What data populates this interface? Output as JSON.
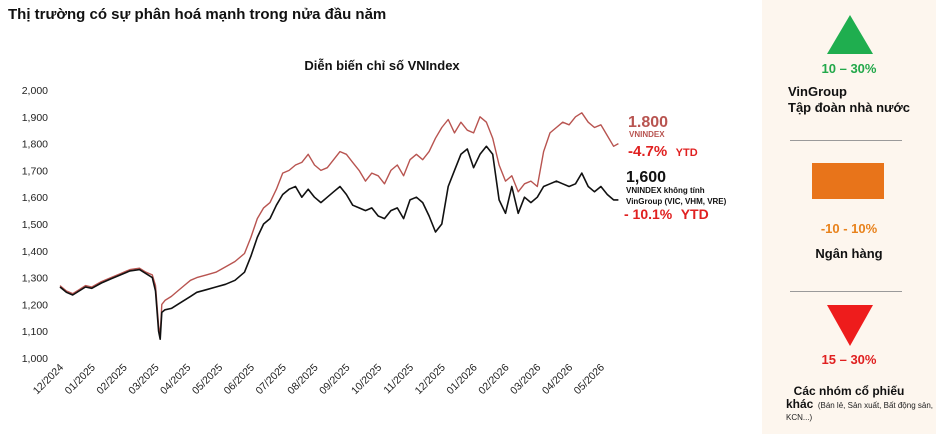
{
  "page_title": "Thị trường có sự phân hoá mạnh trong nửa đầu năm",
  "chart_data": {
    "type": "line",
    "title": "Diễn biến chỉ số VNIndex",
    "xlabel": "",
    "ylabel": "",
    "ylim": [
      1000,
      2000
    ],
    "yticks": [
      1000,
      1100,
      1200,
      1300,
      1400,
      1500,
      1600,
      1700,
      1800,
      1900,
      2000
    ],
    "ytick_labels": [
      "1,000",
      "1,100",
      "1,200",
      "1,300",
      "1,400",
      "1,500",
      "1,600",
      "1,700",
      "1,800",
      "1,900",
      "2,000"
    ],
    "xlim": [
      0,
      17.6
    ],
    "xtick_labels": [
      "12/2024",
      "01/2025",
      "02/2025",
      "03/2025",
      "04/2025",
      "05/2025",
      "06/2025",
      "07/2025",
      "08/2025",
      "09/2025",
      "10/2025",
      "11/2025",
      "12/2025",
      "01/2026",
      "02/2026",
      "03/2026",
      "04/2026",
      "05/2026"
    ],
    "grid": false,
    "series": [
      {
        "name": "VNINDEX",
        "color": "#b85450",
        "x": [
          0,
          0.2,
          0.4,
          0.6,
          0.8,
          1.0,
          1.3,
          1.6,
          1.9,
          2.2,
          2.5,
          2.7,
          2.9,
          3.0,
          3.1,
          3.15,
          3.2,
          3.3,
          3.5,
          3.7,
          3.9,
          4.1,
          4.3,
          4.6,
          4.9,
          5.2,
          5.5,
          5.8,
          6.0,
          6.2,
          6.4,
          6.6,
          6.8,
          7.0,
          7.2,
          7.4,
          7.6,
          7.8,
          8.0,
          8.2,
          8.4,
          8.6,
          8.8,
          9.0,
          9.2,
          9.4,
          9.6,
          9.8,
          10.0,
          10.2,
          10.4,
          10.6,
          10.8,
          11.0,
          11.2,
          11.4,
          11.6,
          11.8,
          12.0,
          12.2,
          12.4,
          12.6,
          12.8,
          13.0,
          13.2,
          13.4,
          13.6,
          13.8,
          14.0,
          14.2,
          14.4,
          14.6,
          14.8,
          15.0,
          15.2,
          15.4,
          15.6,
          15.8,
          16.0,
          16.2,
          16.4,
          16.6,
          16.8,
          17.0,
          17.2,
          17.4,
          17.55
        ],
        "values": [
          1270,
          1250,
          1240,
          1255,
          1270,
          1265,
          1285,
          1300,
          1315,
          1330,
          1335,
          1320,
          1310,
          1270,
          1120,
          1085,
          1200,
          1215,
          1230,
          1250,
          1270,
          1290,
          1300,
          1310,
          1320,
          1340,
          1360,
          1390,
          1450,
          1520,
          1560,
          1580,
          1630,
          1690,
          1700,
          1720,
          1730,
          1760,
          1720,
          1700,
          1710,
          1740,
          1770,
          1760,
          1730,
          1700,
          1660,
          1690,
          1680,
          1650,
          1700,
          1720,
          1680,
          1740,
          1760,
          1740,
          1770,
          1820,
          1860,
          1890,
          1840,
          1880,
          1850,
          1840,
          1900,
          1880,
          1820,
          1720,
          1660,
          1680,
          1620,
          1650,
          1660,
          1640,
          1770,
          1840,
          1860,
          1880,
          1870,
          1900,
          1915,
          1880,
          1860,
          1870,
          1830,
          1790,
          1800
        ]
      },
      {
        "name": "VNINDEX không tính VinGroup (VIC, VHM, VRE)",
        "color": "#111111",
        "x": [
          0,
          0.2,
          0.4,
          0.6,
          0.8,
          1.0,
          1.3,
          1.6,
          1.9,
          2.2,
          2.5,
          2.7,
          2.9,
          3.0,
          3.1,
          3.15,
          3.2,
          3.3,
          3.5,
          3.7,
          3.9,
          4.1,
          4.3,
          4.6,
          4.9,
          5.2,
          5.5,
          5.8,
          6.0,
          6.2,
          6.4,
          6.6,
          6.8,
          7.0,
          7.2,
          7.4,
          7.6,
          7.8,
          8.0,
          8.2,
          8.4,
          8.6,
          8.8,
          9.0,
          9.2,
          9.4,
          9.6,
          9.8,
          10.0,
          10.2,
          10.4,
          10.6,
          10.8,
          11.0,
          11.2,
          11.4,
          11.6,
          11.8,
          12.0,
          12.2,
          12.4,
          12.6,
          12.8,
          13.0,
          13.2,
          13.4,
          13.6,
          13.8,
          14.0,
          14.2,
          14.4,
          14.6,
          14.8,
          15.0,
          15.2,
          15.4,
          15.6,
          15.8,
          16.0,
          16.2,
          16.4,
          16.6,
          16.8,
          17.0,
          17.2,
          17.4,
          17.55
        ],
        "values": [
          1265,
          1245,
          1235,
          1250,
          1265,
          1260,
          1280,
          1295,
          1310,
          1325,
          1330,
          1315,
          1300,
          1250,
          1100,
          1070,
          1170,
          1180,
          1185,
          1200,
          1215,
          1230,
          1245,
          1255,
          1265,
          1275,
          1290,
          1320,
          1380,
          1450,
          1500,
          1520,
          1570,
          1610,
          1630,
          1640,
          1600,
          1630,
          1600,
          1580,
          1600,
          1620,
          1640,
          1610,
          1570,
          1560,
          1550,
          1560,
          1530,
          1520,
          1550,
          1560,
          1520,
          1590,
          1600,
          1580,
          1530,
          1470,
          1500,
          1640,
          1700,
          1760,
          1780,
          1710,
          1760,
          1790,
          1760,
          1590,
          1540,
          1640,
          1540,
          1600,
          1580,
          1600,
          1640,
          1650,
          1660,
          1650,
          1640,
          1650,
          1690,
          1640,
          1620,
          1640,
          1610,
          1590,
          1590
        ]
      }
    ],
    "annotations": [
      {
        "value": "1.800",
        "label": "VNINDEX",
        "ytd": "-4.7%",
        "ytd_suffix": "YTD",
        "color": "#b85450"
      },
      {
        "value": "1,600",
        "label_line1": "VNINDEX không tính",
        "label_line2": "VinGroup (VIC, VHM, VRE)",
        "ytd": "- 10.1%",
        "ytd_suffix": "YTD",
        "color": "#111111"
      }
    ]
  },
  "side_panel": {
    "groups": [
      {
        "range": "10 – 30%",
        "range_color": "#22a84a",
        "name_line1": "VinGroup",
        "name_line2": "Tập đoàn nhà nước",
        "icon": "triangle-up-icon",
        "icon_color": "#1fae4f"
      },
      {
        "range": "-10 - 10%",
        "range_color": "#e8821c",
        "name_line1": "Ngân hàng",
        "icon": "square-icon",
        "icon_color": "#e8741a"
      },
      {
        "range": "15 – 30%",
        "range_color": "#e02020",
        "name_line1": "Các nhóm cổ phiếu",
        "name_line2": "khác",
        "name_detail": "(Bán lẻ, Sản xuất, Bất động sản, KCN...)",
        "icon": "triangle-down-icon",
        "icon_color": "#ee1c1c"
      }
    ]
  }
}
